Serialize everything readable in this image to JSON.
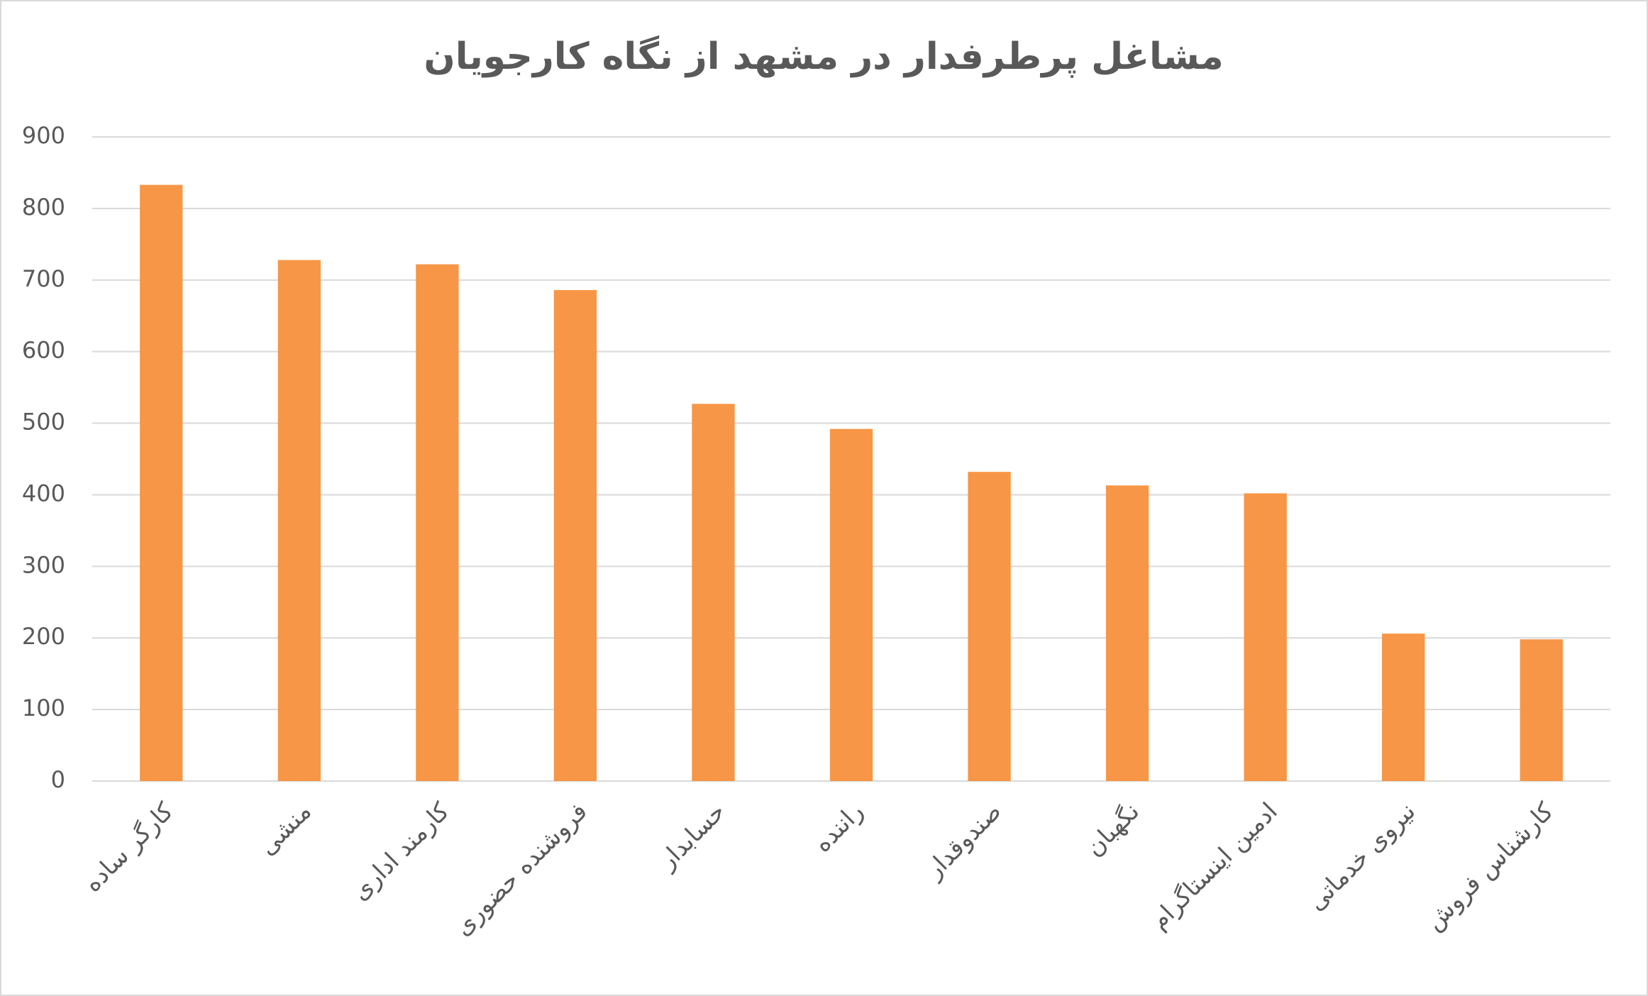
{
  "chart_data": {
    "type": "bar",
    "title": "مشاغل پرطرفدار در مشهد از نگاه کارجویان",
    "categories": [
      "کارگر ساده",
      "منشی",
      "کارمند اداری",
      "فروشنده حضوری",
      "حسابدار",
      "راننده",
      "صندوقدار",
      "نگهبان",
      "ادمین اینستاگرام",
      "نیروی خدماتی",
      "کارشناس فروش"
    ],
    "values": [
      833,
      728,
      722,
      686,
      527,
      492,
      432,
      413,
      402,
      206,
      198
    ],
    "color": "#f79646",
    "ylim": [
      0,
      900
    ],
    "yticks": [
      0,
      100,
      200,
      300,
      400,
      500,
      600,
      700,
      800,
      900
    ],
    "grid": true
  }
}
